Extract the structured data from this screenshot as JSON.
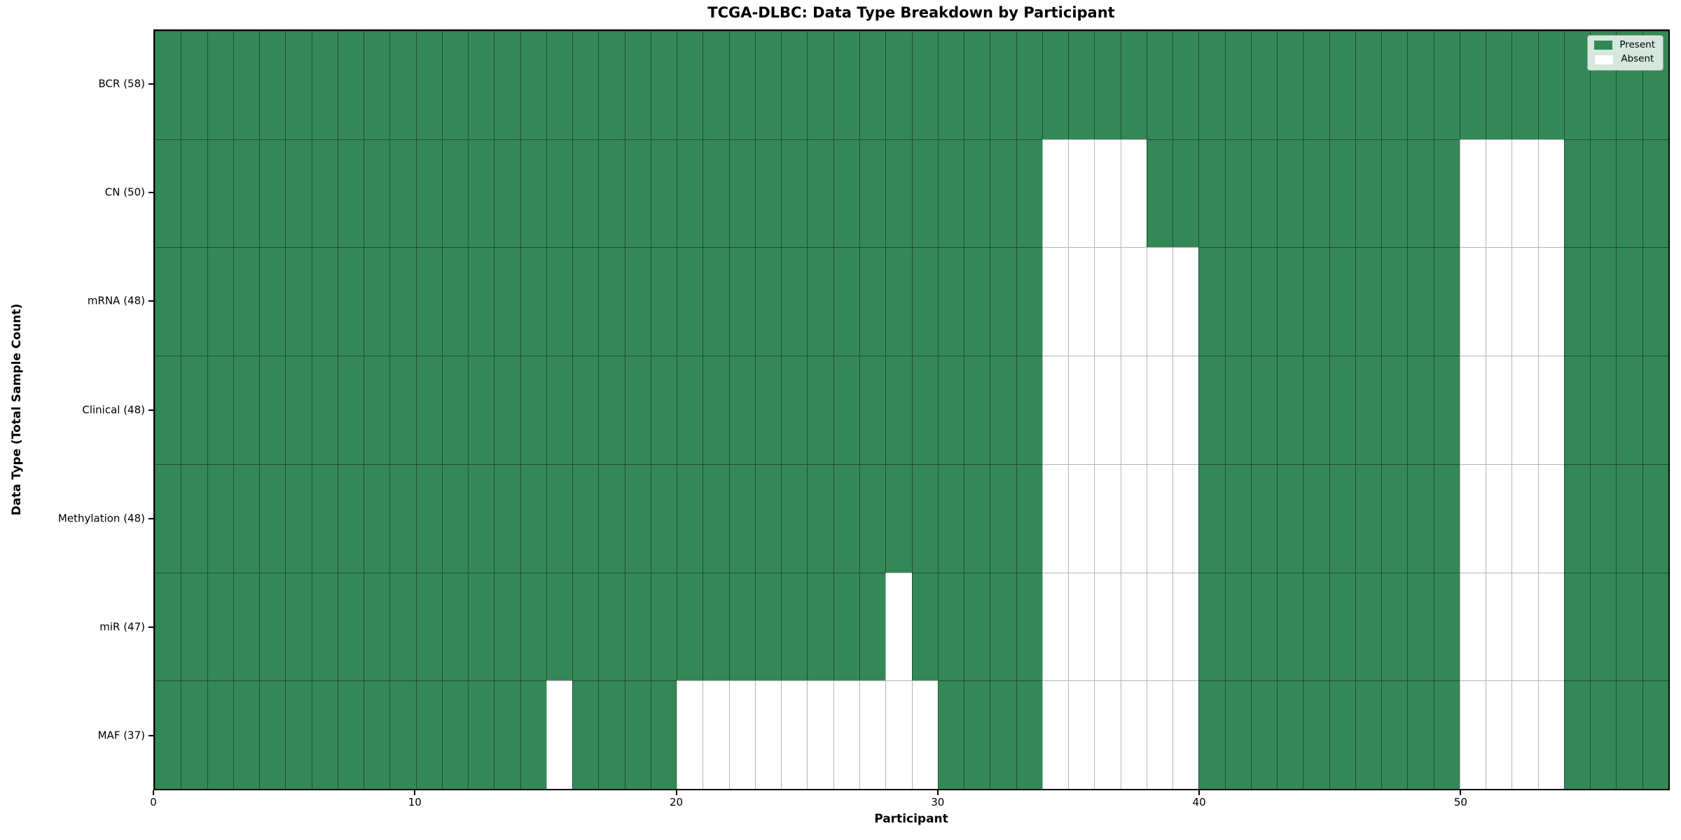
{
  "chart_data": {
    "type": "heatmap",
    "title": "TCGA-DLBC: Data Type Breakdown by Participant",
    "xlabel": "Participant",
    "ylabel": "Data Type (Total Sample Count)",
    "n_participants": 58,
    "x_range": [
      0,
      58
    ],
    "x_ticks": [
      0,
      10,
      20,
      30,
      40,
      50
    ],
    "grid": "on",
    "legend_position": "upper right",
    "legend": [
      {
        "label": "Present",
        "color": "#348857"
      },
      {
        "label": "Absent",
        "color": "#ffffff"
      }
    ],
    "rows": [
      {
        "label": "BCR (58)",
        "data_type": "BCR",
        "total": 58,
        "absent_participants": []
      },
      {
        "label": "CN (50)",
        "data_type": "CN",
        "total": 50,
        "absent_participants": [
          34,
          35,
          36,
          37,
          50,
          51,
          52,
          53
        ]
      },
      {
        "label": "mRNA (48)",
        "data_type": "mRNA",
        "total": 48,
        "absent_participants": [
          34,
          35,
          36,
          37,
          38,
          39,
          50,
          51,
          52,
          53
        ]
      },
      {
        "label": "Clinical (48)",
        "data_type": "Clinical",
        "total": 48,
        "absent_participants": [
          34,
          35,
          36,
          37,
          38,
          39,
          50,
          51,
          52,
          53
        ]
      },
      {
        "label": "Methylation (48)",
        "data_type": "Methylation",
        "total": 48,
        "absent_participants": [
          34,
          35,
          36,
          37,
          38,
          39,
          50,
          51,
          52,
          53
        ]
      },
      {
        "label": "miR (47)",
        "data_type": "miR",
        "total": 47,
        "absent_participants": [
          28,
          34,
          35,
          36,
          37,
          38,
          39,
          50,
          51,
          52,
          53
        ]
      },
      {
        "label": "MAF (37)",
        "data_type": "MAF",
        "total": 37,
        "absent_participants": [
          15,
          20,
          21,
          22,
          23,
          24,
          25,
          26,
          27,
          28,
          29,
          34,
          35,
          36,
          37,
          38,
          39,
          50,
          51,
          52,
          53
        ]
      }
    ],
    "colors": {
      "present": "#348857",
      "absent": "#ffffff",
      "grid_on_present": "#1e4f31",
      "grid_on_absent": "#b5b5b5",
      "spine": "#000000",
      "legend_background": "#d5e8dd"
    }
  }
}
